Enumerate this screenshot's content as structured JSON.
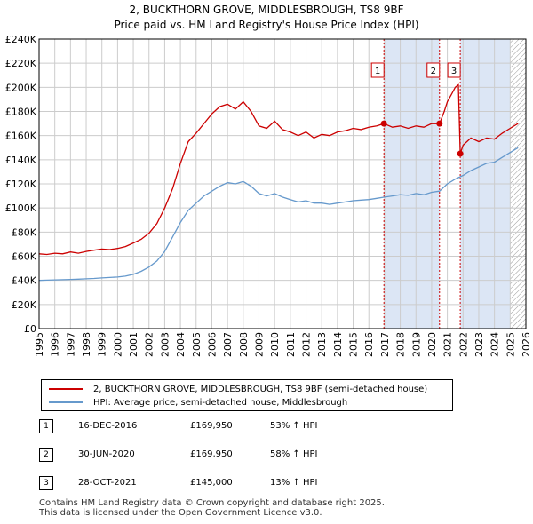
{
  "title_line1": "2, BUCKTHORN GROVE, MIDDLESBROUGH, TS8 9BF",
  "title_line2": "Price paid vs. HM Land Registry's House Price Index (HPI)",
  "chart_data": {
    "type": "line",
    "title": "2, BUCKTHORN GROVE, MIDDLESBROUGH, TS8 9BF",
    "subtitle": "Price paid vs. HM Land Registry's House Price Index (HPI)",
    "xlabel": "",
    "ylabel": "",
    "xlim": [
      1995,
      2026
    ],
    "ylim": [
      0,
      240000
    ],
    "grid": true,
    "y_ticks": [
      0,
      20000,
      40000,
      60000,
      80000,
      100000,
      120000,
      140000,
      160000,
      180000,
      200000,
      220000,
      240000
    ],
    "y_tick_labels": [
      "£0",
      "£20K",
      "£40K",
      "£60K",
      "£80K",
      "£100K",
      "£120K",
      "£140K",
      "£160K",
      "£180K",
      "£200K",
      "£220K",
      "£240K"
    ],
    "x_ticks": [
      1995,
      1996,
      1997,
      1998,
      1999,
      2000,
      2001,
      2002,
      2003,
      2004,
      2005,
      2006,
      2007,
      2008,
      2009,
      2010,
      2011,
      2012,
      2013,
      2014,
      2015,
      2016,
      2017,
      2018,
      2019,
      2020,
      2021,
      2022,
      2023,
      2024,
      2025,
      2026
    ],
    "x_tick_labels": [
      "1995",
      "1996",
      "1997",
      "1998",
      "1999",
      "2000",
      "2001",
      "2002",
      "2003",
      "2004",
      "2005",
      "2006",
      "2007",
      "2008",
      "2009",
      "2010",
      "2011",
      "2012",
      "2013",
      "2014",
      "2015",
      "2016",
      "2017",
      "2018",
      "2019",
      "2020",
      "2021",
      "2022",
      "2023",
      "2024",
      "2025",
      "2026"
    ],
    "shaded_periods": [
      [
        2016.96,
        2020.5
      ],
      [
        2021.82,
        2025.0
      ]
    ],
    "hatched_period": [
      2025.0,
      2026
    ],
    "series": [
      {
        "name": "2, BUCKTHORN GROVE, MIDDLESBROUGH, TS8 9BF (semi-detached house)",
        "color": "#cc0000",
        "x": [
          1995.0,
          1995.5,
          1996.0,
          1996.5,
          1997.0,
          1997.5,
          1998.0,
          1998.5,
          1999.0,
          1999.5,
          2000.0,
          2000.5,
          2001.0,
          2001.5,
          2002.0,
          2002.5,
          2003.0,
          2003.5,
          2004.0,
          2004.5,
          2005.0,
          2005.5,
          2006.0,
          2006.5,
          2007.0,
          2007.5,
          2008.0,
          2008.5,
          2009.0,
          2009.5,
          2010.0,
          2010.5,
          2011.0,
          2011.5,
          2012.0,
          2012.5,
          2013.0,
          2013.5,
          2014.0,
          2014.5,
          2015.0,
          2015.5,
          2016.0,
          2016.5,
          2016.96,
          2017.5,
          2018.0,
          2018.5,
          2019.0,
          2019.5,
          2020.0,
          2020.5,
          2020.8,
          2021.0,
          2021.3,
          2021.5,
          2021.7,
          2021.82,
          2022.0,
          2022.5,
          2023.0,
          2023.5,
          2024.0,
          2024.5,
          2025.0,
          2025.5
        ],
        "values": [
          62000,
          61500,
          62500,
          62000,
          63500,
          62500,
          64000,
          65000,
          66000,
          65500,
          66500,
          68000,
          71000,
          74000,
          79000,
          87000,
          100000,
          116000,
          137000,
          155000,
          162000,
          170000,
          178000,
          184000,
          186000,
          182000,
          188000,
          180000,
          168000,
          166000,
          172000,
          165000,
          163000,
          160000,
          163000,
          158000,
          161000,
          160000,
          163000,
          164000,
          166000,
          165000,
          167000,
          168000,
          169950,
          167000,
          168000,
          166000,
          168000,
          167000,
          170000,
          169950,
          180000,
          188000,
          195000,
          200000,
          202000,
          145000,
          152000,
          158000,
          155000,
          158000,
          157000,
          162000,
          166000,
          170000
        ]
      },
      {
        "name": "HPI: Average price, semi-detached house, Middlesbrough",
        "color": "#6699cc",
        "x": [
          1995.0,
          1995.5,
          1996.0,
          1996.5,
          1997.0,
          1997.5,
          1998.0,
          1998.5,
          1999.0,
          1999.5,
          2000.0,
          2000.5,
          2001.0,
          2001.5,
          2002.0,
          2002.5,
          2003.0,
          2003.5,
          2004.0,
          2004.5,
          2005.0,
          2005.5,
          2006.0,
          2006.5,
          2007.0,
          2007.5,
          2008.0,
          2008.5,
          2009.0,
          2009.5,
          2010.0,
          2010.5,
          2011.0,
          2011.5,
          2012.0,
          2012.5,
          2013.0,
          2013.5,
          2014.0,
          2014.5,
          2015.0,
          2015.5,
          2016.0,
          2016.5,
          2017.0,
          2017.5,
          2018.0,
          2018.5,
          2019.0,
          2019.5,
          2020.0,
          2020.5,
          2021.0,
          2021.5,
          2022.0,
          2022.5,
          2023.0,
          2023.5,
          2024.0,
          2024.5,
          2025.0,
          2025.5
        ],
        "values": [
          40000,
          40200,
          40400,
          40600,
          40800,
          41000,
          41300,
          41600,
          42000,
          42400,
          42800,
          43500,
          45000,
          47500,
          51000,
          56000,
          64000,
          76000,
          88000,
          98000,
          104000,
          110000,
          114000,
          118000,
          121000,
          120000,
          122000,
          118000,
          112000,
          110000,
          112000,
          109000,
          107000,
          105000,
          106000,
          104000,
          104000,
          103000,
          104000,
          105000,
          106000,
          106500,
          107000,
          108000,
          109000,
          110000,
          111000,
          110500,
          112000,
          111000,
          113000,
          114000,
          120000,
          124000,
          127000,
          131000,
          134000,
          137000,
          138000,
          142000,
          146000,
          150000
        ]
      }
    ],
    "markers": [
      {
        "label": "1",
        "x": 2016.96,
        "y": 169950
      },
      {
        "label": "2",
        "x": 2020.5,
        "y": 169950
      },
      {
        "label": "3",
        "x": 2021.82,
        "y": 145000
      }
    ]
  },
  "legend": {
    "red_label": "2, BUCKTHORN GROVE, MIDDLESBROUGH, TS8 9BF (semi-detached house)",
    "blue_label": "HPI: Average price, semi-detached house, Middlesbrough"
  },
  "sales": [
    {
      "num": "1",
      "date": "16-DEC-2016",
      "price": "£169,950",
      "hpi": "53% ↑ HPI"
    },
    {
      "num": "2",
      "date": "30-JUN-2020",
      "price": "£169,950",
      "hpi": "58% ↑ HPI"
    },
    {
      "num": "3",
      "date": "28-OCT-2021",
      "price": "£145,000",
      "hpi": "13% ↑ HPI"
    }
  ],
  "footer": {
    "line1": "Contains HM Land Registry data © Crown copyright and database right 2025.",
    "line2": "This data is licensed under the Open Government Licence v3.0."
  },
  "colors": {
    "red": "#cc0000",
    "blue": "#6699cc",
    "shade": "#dce6f5",
    "grid": "#cccccc"
  }
}
